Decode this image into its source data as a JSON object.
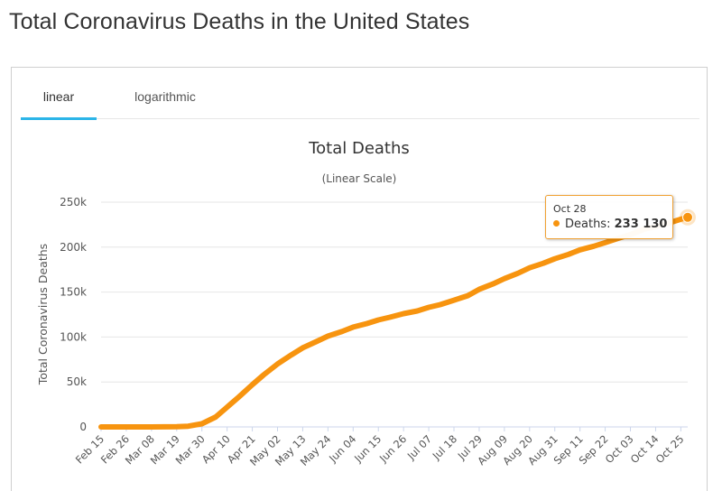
{
  "page": {
    "title": "Total Coronavirus Deaths in the United States"
  },
  "tabs": [
    {
      "label": "linear",
      "active": true
    },
    {
      "label": "logarithmic",
      "active": false
    }
  ],
  "colors": {
    "line": "#f7940f",
    "tab_active": "#2cb5e8",
    "grid": "#e6e6e6"
  },
  "tooltip": {
    "date": "Oct 28",
    "series": "Deaths",
    "value": "233 130"
  },
  "chart_data": {
    "type": "line",
    "title": "Total Deaths",
    "subtitle": "(Linear Scale)",
    "ylabel": "Total Coronavirus Deaths",
    "xlabel": "",
    "ylim": [
      0,
      250000
    ],
    "y_ticks": [
      0,
      50000,
      100000,
      150000,
      200000,
      250000
    ],
    "y_tick_labels": [
      "0",
      "50k",
      "100k",
      "150k",
      "200k",
      "250k"
    ],
    "grid": true,
    "legend": "none",
    "x_tick_labels": [
      "Feb 15",
      "Feb 26",
      "Mar 08",
      "Mar 19",
      "Mar 30",
      "Apr 10",
      "Apr 21",
      "May 02",
      "May 13",
      "May 24",
      "Jun 04",
      "Jun 15",
      "Jun 26",
      "Jul 07",
      "Jul 18",
      "Jul 29",
      "Aug 09",
      "Aug 20",
      "Aug 31",
      "Sep 11",
      "Sep 22",
      "Oct 03",
      "Oct 14",
      "Oct 25"
    ],
    "series": [
      {
        "name": "Deaths",
        "x": [
          "Feb 15",
          "Feb 26",
          "Mar 08",
          "Mar 19",
          "Mar 24",
          "Mar 30",
          "Apr 05",
          "Apr 10",
          "Apr 15",
          "Apr 21",
          "Apr 26",
          "May 02",
          "May 08",
          "May 13",
          "May 19",
          "May 24",
          "May 30",
          "Jun 04",
          "Jun 10",
          "Jun 15",
          "Jun 20",
          "Jun 26",
          "Jul 02",
          "Jul 07",
          "Jul 12",
          "Jul 18",
          "Jul 24",
          "Jul 29",
          "Aug 04",
          "Aug 09",
          "Aug 15",
          "Aug 20",
          "Aug 26",
          "Aug 31",
          "Sep 06",
          "Sep 11",
          "Sep 17",
          "Sep 22",
          "Sep 28",
          "Oct 03",
          "Oct 09",
          "Oct 14",
          "Oct 20",
          "Oct 25",
          "Oct 28"
        ],
        "y": [
          0,
          0,
          20,
          200,
          800,
          3500,
          11000,
          22000,
          33000,
          47000,
          58000,
          70000,
          80000,
          88000,
          95000,
          101000,
          106000,
          111000,
          115000,
          119000,
          122000,
          126000,
          129000,
          133000,
          136000,
          141000,
          146000,
          153000,
          159000,
          165000,
          171000,
          177000,
          182000,
          187000,
          192000,
          197000,
          201000,
          205000,
          210000,
          214000,
          220000,
          223000,
          227000,
          231000,
          233130
        ]
      }
    ]
  }
}
